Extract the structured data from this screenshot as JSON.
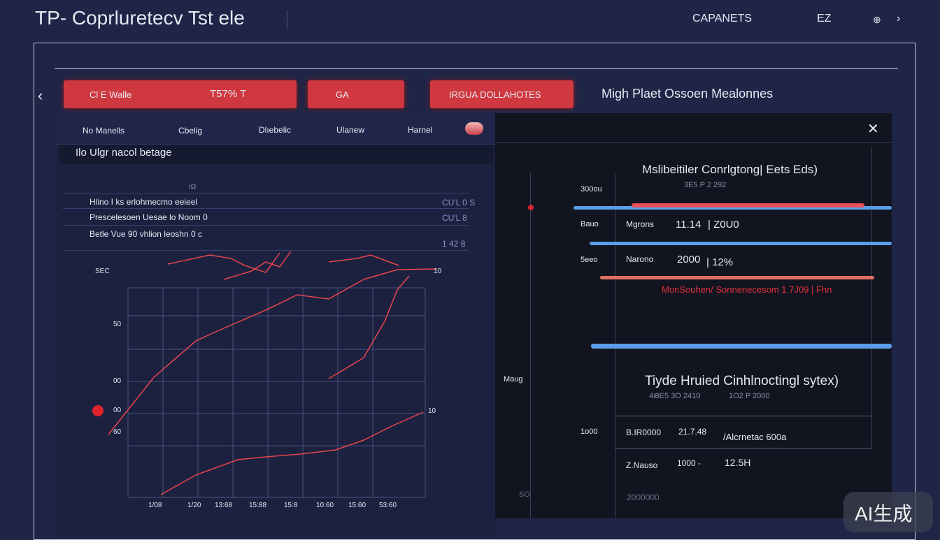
{
  "header": {
    "title": "TP- Coprluretecv Tst ele",
    "toolbar": [
      "CAPANETS",
      "EZ",
      "⊕"
    ]
  },
  "actions": {
    "buttons": [
      "Cl E Walle",
      "T57% T",
      "GA",
      "IRGUA DOLLAHOTES"
    ],
    "heading": "Migh Plaet  Ossoen Mealonnes"
  },
  "left_panel": {
    "tabs": [
      "No Manells",
      "Cbelig",
      "Dlıebelic",
      "Ulanew",
      "Harnel"
    ],
    "subtitle": "Ilo Ulgr nacol betage",
    "marker": "ıΩ",
    "rows": [
      {
        "label": "Hlino I ks erlohmecmo eeieel",
        "value": "CU'L 0 S"
      },
      {
        "label": "Prescelesoen Uesae lo Noom 0",
        "value": "CU'L 8"
      },
      {
        "label": "Betle Vue 90 vhlion leoshn 0 c",
        "value": "1 42 8"
      }
    ],
    "y_labels": [
      "SEC",
      "50",
      "00",
      "00",
      "60"
    ],
    "x_labels": [
      "1/08",
      "1/20",
      "13:68",
      "15:88",
      "15:8",
      "10:60",
      "15:60",
      "53:60"
    ],
    "end_labels": [
      "10",
      "10"
    ]
  },
  "right_panel": {
    "title": "Mslibeitiler Conrlgtong| Eets Eds)",
    "subtitle": "3E5 P 2 292",
    "side_labels": [
      "300ou",
      "Bauo",
      "5eeo",
      "Maug",
      "1o00",
      "SO"
    ],
    "rows": [
      {
        "a": "Mgrons",
        "b": "11.14",
        "c": "| Z0U0"
      },
      {
        "a": "Narono",
        "b": "2000",
        "c": "| 12%"
      }
    ],
    "alert": "MonSouhen/ Sonnenecesom 1 7J09  | Fhn",
    "section_title": "Tiyde Hruied Cinhlnoctingl sytex)",
    "section_sub": [
      "4i8E5 3O 2410",
      "1O2 P 2000"
    ],
    "table": [
      [
        "B.IR0000",
        "21.7.48",
        "/Alcrnetac 600a"
      ],
      [
        "Z.Nauso",
        "1000 -",
        "12.5H"
      ],
      [
        "2000000",
        "",
        ""
      ]
    ]
  },
  "watermark": "AI生成"
}
